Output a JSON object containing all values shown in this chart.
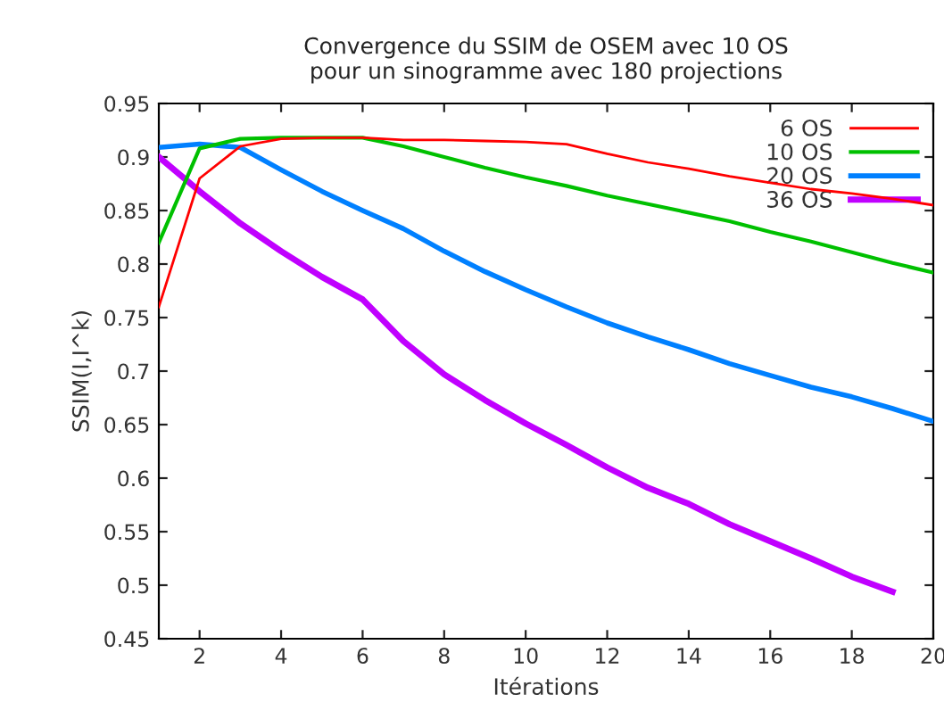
{
  "chart_data": {
    "type": "line",
    "title": "Convergence du SSIM de OSEM avec 10 OS\npour un sinogramme avec 180 projections",
    "xlabel": "Itérations",
    "ylabel": "SSIM(I,I^k)",
    "x": [
      1,
      2,
      3,
      4,
      5,
      6,
      7,
      8,
      9,
      10,
      11,
      12,
      13,
      14,
      15,
      16,
      17,
      18,
      19,
      20
    ],
    "series": [
      {
        "name": "6 OS",
        "color": "#ff0000",
        "values": [
          0.76,
          0.88,
          0.91,
          0.917,
          0.918,
          0.918,
          0.916,
          0.916,
          0.915,
          0.914,
          0.912,
          0.903,
          0.895,
          0.889,
          0.882,
          0.876,
          0.87,
          0.866,
          0.861,
          0.855
        ]
      },
      {
        "name": "10 OS",
        "color": "#00c000",
        "values": [
          0.82,
          0.908,
          0.917,
          0.918,
          0.918,
          0.918,
          0.91,
          0.9,
          0.89,
          0.881,
          0.873,
          0.864,
          0.856,
          0.848,
          0.84,
          0.83,
          0.821,
          0.811,
          0.801,
          0.792
        ]
      },
      {
        "name": "20 OS",
        "color": "#0080ff",
        "values": [
          0.909,
          0.912,
          0.909,
          0.888,
          0.868,
          0.85,
          0.833,
          0.812,
          0.793,
          0.776,
          0.76,
          0.745,
          0.732,
          0.72,
          0.707,
          0.696,
          0.685,
          0.676,
          0.665,
          0.653
        ]
      },
      {
        "name": "36 OS",
        "color": "#c000ff",
        "values": [
          0.9,
          0.868,
          0.838,
          0.812,
          0.788,
          0.767,
          0.728,
          0.697,
          0.673,
          0.651,
          0.631,
          0.61,
          0.591,
          0.576,
          0.557,
          0.541,
          0.525,
          0.508,
          0.494,
          null
        ]
      }
    ],
    "xlim": [
      1,
      20
    ],
    "xticks": [
      2,
      4,
      6,
      8,
      10,
      12,
      14,
      16,
      18,
      20
    ],
    "ylim": [
      0.45,
      0.95
    ],
    "yticks": [
      0.45,
      0.5,
      0.55,
      0.6,
      0.65,
      0.7,
      0.75,
      0.8,
      0.85,
      0.9,
      0.95
    ],
    "grid": false,
    "legend": "top right",
    "marker": "none",
    "line_style": "solid"
  }
}
